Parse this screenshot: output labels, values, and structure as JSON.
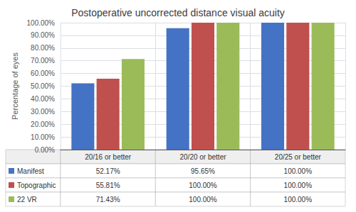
{
  "chart_data": {
    "type": "bar",
    "title": "Postoperative uncorrected distance visual acuity",
    "categories": [
      "20/16 or better",
      "20/20 or better",
      "20/25 or better"
    ],
    "series": [
      {
        "name": "Manifest",
        "color": "#4472C4",
        "values": [
          52.17,
          95.65,
          100.0
        ],
        "value_labels": [
          "52.17%",
          "95.65%",
          "100.00%"
        ]
      },
      {
        "name": "Topographic",
        "color": "#C0504D",
        "values": [
          55.81,
          100.0,
          100.0
        ],
        "value_labels": [
          "55.81%",
          "100.00%",
          "100.00%"
        ]
      },
      {
        "name": "22 VR",
        "color": "#9BBB59",
        "values": [
          71.43,
          100.0,
          100.0
        ],
        "value_labels": [
          "71.43%",
          "100.00%",
          "100.00%"
        ]
      }
    ],
    "ylabel": "Percentage of eyes",
    "ylim": [
      0,
      100
    ],
    "yticks": [
      {
        "value": 0,
        "label": "0.00%"
      },
      {
        "value": 10,
        "label": "10.00%"
      },
      {
        "value": 20,
        "label": "20.00%"
      },
      {
        "value": 30,
        "label": "30.00%"
      },
      {
        "value": 40,
        "label": "40.00%"
      },
      {
        "value": 50,
        "label": "50.00%"
      },
      {
        "value": 60,
        "label": "60.00%"
      },
      {
        "value": 70,
        "label": "70.00%"
      },
      {
        "value": 80,
        "label": "80.00%"
      },
      {
        "value": 90,
        "label": "90.00%"
      },
      {
        "value": 100,
        "label": "100.00%"
      }
    ],
    "grid": true,
    "tick_labels": "y"
  }
}
